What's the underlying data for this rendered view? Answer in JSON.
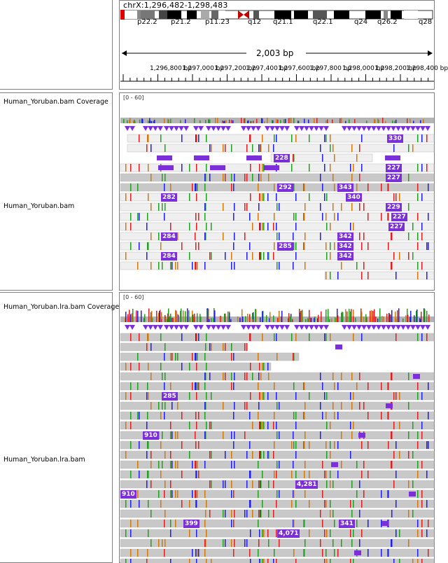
{
  "locus": "chrX:1,296,482-1,298,483",
  "ideogram": {
    "bands": [
      "p22.2",
      "p21.2",
      "p11.23",
      "q12",
      "q21.1",
      "q22.1",
      "q24",
      "q26.2",
      "q28"
    ]
  },
  "ruler": {
    "span": "2,003 bp",
    "ticks": [
      "1,296,800 bp",
      "1,297,000 bp",
      "1,297,200 bp",
      "1,297,400 bp",
      "1,297,600 bp",
      "1,297,800 bp",
      "1,298,000 bp",
      "1,298,200 bp",
      "1,298,400 bp"
    ]
  },
  "tracks": [
    {
      "name": "Human_Yoruban.bam Coverage",
      "range": "[0 - 60]"
    },
    {
      "name": "Human_Yoruban.bam",
      "insertion_labels": [
        "330",
        "228",
        "227",
        "227",
        "292",
        "343",
        "282",
        "340",
        "229",
        "227",
        "227",
        "284",
        "342",
        "285",
        "342",
        "284",
        "342"
      ]
    },
    {
      "name": "Human_Yoruban.lra.bam Coverage",
      "range": "[0 - 60]"
    },
    {
      "name": "Human_Yoruban.lra.bam",
      "insertion_labels": [
        "285",
        "910",
        "4,281",
        "910",
        "399",
        "341",
        "4,071"
      ]
    }
  ],
  "colors": {
    "insertion": "#7b2fd6",
    "read": "#c8c8c8",
    "coverage": "#b4b4b4",
    "mismatch_a": "#1ea01e",
    "mismatch_c": "#1e1ee6",
    "mismatch_g": "#d2780a",
    "mismatch_t": "#dc1e1e"
  }
}
